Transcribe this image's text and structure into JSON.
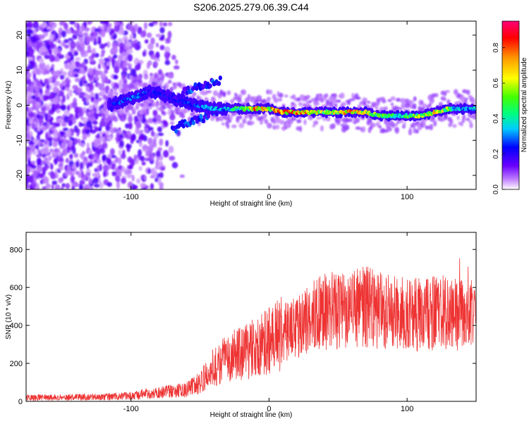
{
  "title": "S206.2025.279.06.39.C44",
  "chart_data": [
    {
      "type": "heatmap",
      "xlabel": "Height of straight line (km)",
      "ylabel": "Frequency (Hz)",
      "xlim": [
        -176,
        150
      ],
      "ylim": [
        -24,
        24
      ],
      "x_ticks": [
        "-100",
        "0",
        "100"
      ],
      "x_tick_values": [
        -100,
        0,
        100
      ],
      "y_ticks": [
        "-20",
        "-10",
        "0",
        "10",
        "20"
      ],
      "y_tick_values": [
        -20,
        -10,
        0,
        10,
        20
      ],
      "colorbar": {
        "label": "Normalized spectral amplitude",
        "range": [
          0,
          0.95
        ],
        "ticks": [
          "0.0",
          "0.2",
          "0.4",
          "0.6",
          "0.8"
        ],
        "tick_values": [
          0.0,
          0.2,
          0.4,
          0.6,
          0.8
        ]
      },
      "ridge": {
        "x": [
          -116,
          -100,
          -85,
          -70,
          -55,
          -40,
          -30,
          -20,
          -10,
          0,
          10,
          20,
          30,
          40,
          50,
          60,
          70,
          80,
          90,
          100,
          110,
          120,
          130,
          140,
          150
        ],
        "freq": [
          0,
          2,
          4,
          2,
          0,
          -1,
          -1,
          -1,
          -1,
          -1,
          -2,
          -2,
          -2,
          -2,
          -2,
          -2,
          -2,
          -3,
          -3,
          -3,
          -3,
          -2,
          -1,
          -1,
          -1
        ],
        "amplitude": [
          0.25,
          0.35,
          0.3,
          0.25,
          0.3,
          0.4,
          0.45,
          0.6,
          0.85,
          0.85,
          0.9,
          0.85,
          0.8,
          0.7,
          0.75,
          0.85,
          0.8,
          0.6,
          0.55,
          0.6,
          0.7,
          0.8,
          0.6,
          0.4,
          0.4
        ]
      },
      "branches": [
        {
          "name": "upper-branch",
          "x": [
            -65,
            -55,
            -45,
            -35
          ],
          "freq": [
            3,
            5,
            6,
            7
          ]
        },
        {
          "name": "lower-branch",
          "x": [
            -70,
            -60,
            -50,
            -40
          ],
          "freq": [
            -7,
            -5,
            -4,
            -2
          ]
        }
      ]
    },
    {
      "type": "line",
      "xlabel": "Height of straight line (km)",
      "ylabel": "SNR (10 * v/v)",
      "xlim": [
        -176,
        150
      ],
      "ylim": [
        0,
        890
      ],
      "x_ticks": [
        "-100",
        "0",
        "100"
      ],
      "x_tick_values": [
        -100,
        0,
        100
      ],
      "y_ticks": [
        "0",
        "200",
        "400",
        "600",
        "800"
      ],
      "y_tick_values": [
        0,
        200,
        400,
        600,
        800
      ],
      "series": [
        {
          "name": "SNR",
          "color": "#ee3333",
          "x": [
            -176,
            -140,
            -110,
            -100,
            -90,
            -80,
            -70,
            -60,
            -50,
            -40,
            -30,
            -20,
            -10,
            0,
            10,
            20,
            30,
            40,
            50,
            60,
            70,
            80,
            90,
            100,
            110,
            120,
            130,
            140,
            150
          ],
          "y": [
            20,
            22,
            25,
            30,
            40,
            45,
            55,
            60,
            100,
            180,
            230,
            250,
            280,
            320,
            360,
            400,
            440,
            470,
            480,
            490,
            500,
            480,
            470,
            460,
            450,
            460,
            470,
            460,
            450
          ]
        }
      ]
    }
  ]
}
